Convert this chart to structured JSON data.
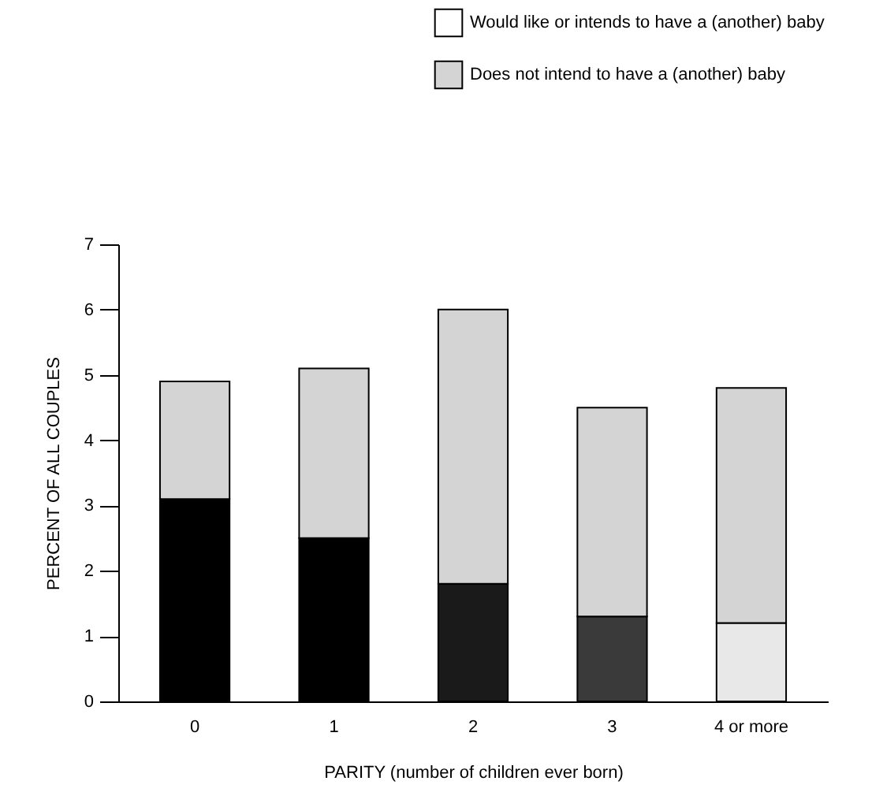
{
  "chart_data": {
    "type": "bar",
    "stacked": true,
    "xlabel": "PARITY (number of children ever born)",
    "ylabel": "PERCENT OF ALL COUPLES",
    "categories": [
      "0",
      "1",
      "2",
      "3",
      "4 or more"
    ],
    "series": [
      {
        "name": "Would like or intends to have a (another) baby",
        "color": "#ffffff",
        "colors": [
          "#000000",
          "#000000",
          "#1a1a1a",
          "#3a3a3a",
          "#e8e8e8"
        ],
        "values": [
          3.1,
          2.5,
          1.8,
          1.3,
          1.2
        ]
      },
      {
        "name": "Does not intend to have a (another) baby",
        "color": "#d4d4d4",
        "values": [
          1.8,
          2.6,
          4.2,
          3.2,
          3.6
        ]
      }
    ],
    "ylim": [
      0,
      7
    ],
    "yticks": [
      0,
      1,
      2,
      3,
      4,
      5,
      6,
      7
    ],
    "legend": "top right",
    "grid": false
  }
}
